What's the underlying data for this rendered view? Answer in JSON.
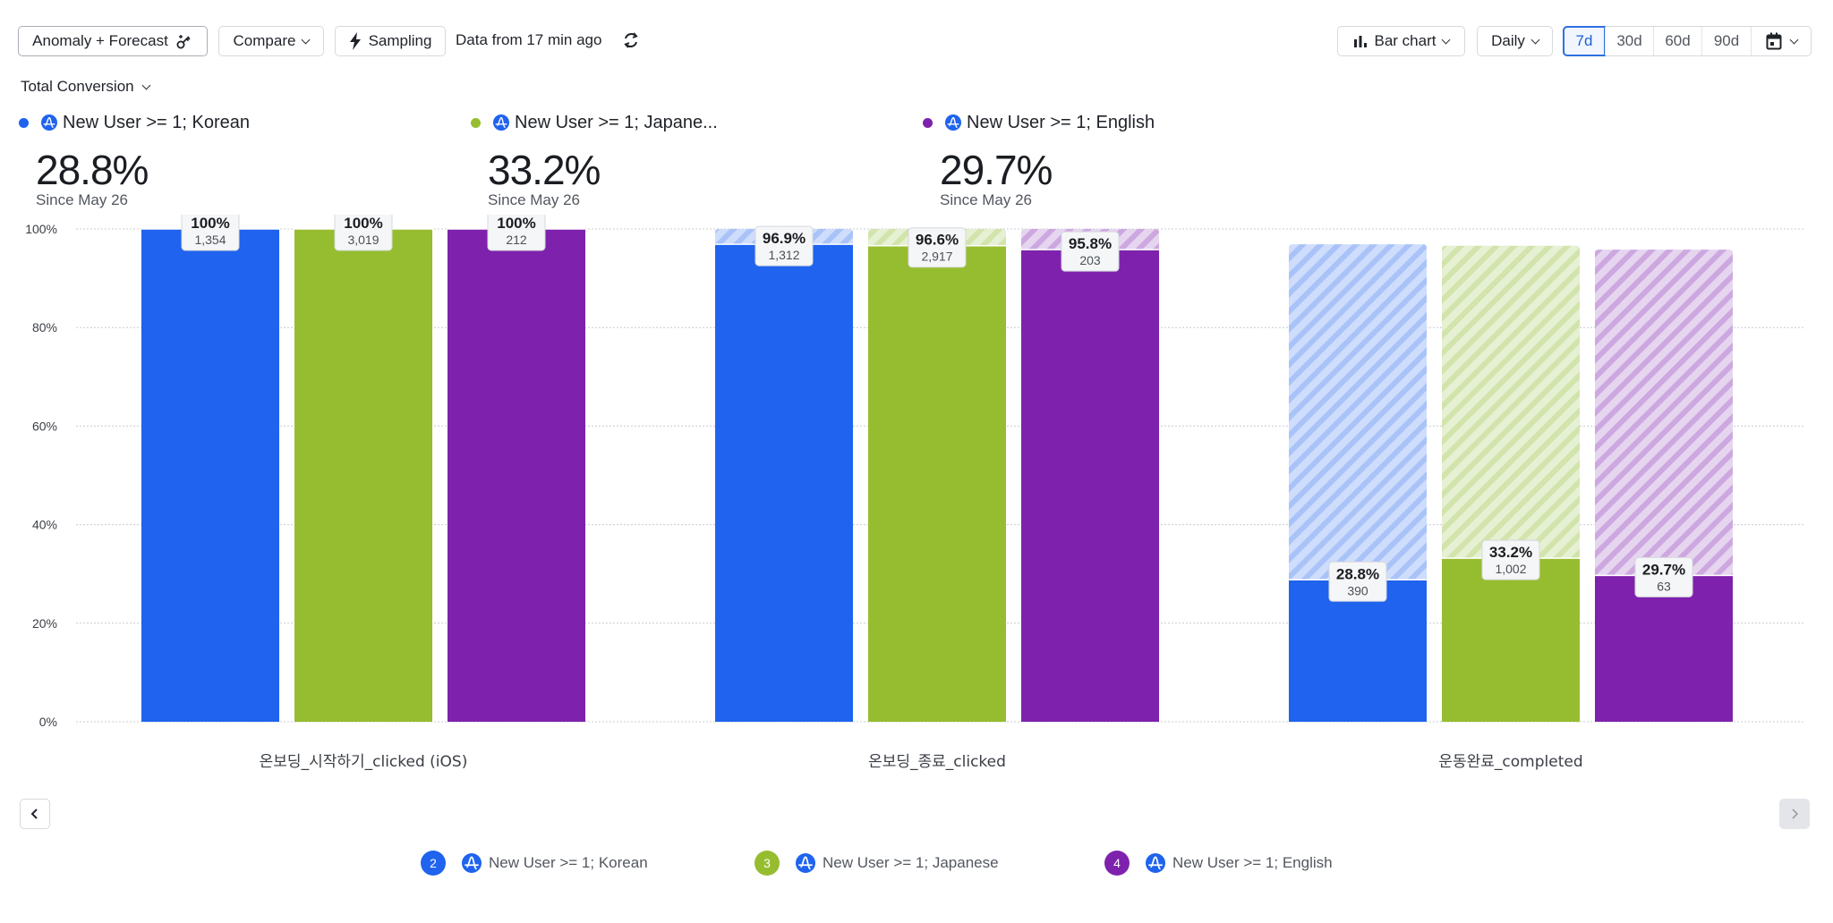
{
  "toolbar": {
    "anomaly_label": "Anomaly + Forecast",
    "compare_label": "Compare",
    "sampling_label": "Sampling",
    "data_freshness": "Data from 17 min ago",
    "chart_type_label": "Bar chart",
    "interval_label": "Daily",
    "ranges": [
      "7d",
      "30d",
      "60d",
      "90d"
    ],
    "active_range": "7d"
  },
  "metric_selector": {
    "label": "Total Conversion"
  },
  "summaries": [
    {
      "label": "New User >= 1; Korean",
      "value": "28.8%",
      "since": "Since May 26",
      "color": "#1f63ee"
    },
    {
      "label": "New User >= 1; Japane...",
      "value": "33.2%",
      "since": "Since May 26",
      "color": "#96bd2f"
    },
    {
      "label": "New User >= 1; English",
      "value": "29.7%",
      "since": "Since May 26",
      "color": "#7e22ad"
    }
  ],
  "legend": [
    {
      "index": "2",
      "label": "New User >= 1; Korean",
      "color": "#1f63ee"
    },
    {
      "index": "3",
      "label": "New User >= 1; Japanese",
      "color": "#96bd2f"
    },
    {
      "index": "4",
      "label": "New User >= 1; English",
      "color": "#7e22ad"
    }
  ],
  "chart_data": {
    "type": "bar",
    "title": "Total Conversion",
    "xlabel": "",
    "ylabel": "",
    "ylim": [
      0,
      100
    ],
    "yticks": [
      "0%",
      "20%",
      "40%",
      "60%",
      "80%",
      "100%"
    ],
    "ytick_values": [
      0,
      20,
      40,
      60,
      80,
      100
    ],
    "grid": true,
    "legend_position": "bottom",
    "categories": [
      "온보딩_시작하기_clicked (iOS)",
      "온보딩_종료_clicked",
      "운동완료_completed"
    ],
    "series": [
      {
        "name": "New User >= 1; Korean",
        "color": "#1f63ee",
        "light": "#cfddfc",
        "stripe": "#a9c3f8",
        "values": [
          100,
          96.9,
          28.8
        ],
        "counts": [
          "1,354",
          "1,312",
          "390"
        ],
        "labels": [
          "100%",
          "96.9%",
          "28.8%"
        ]
      },
      {
        "name": "New User >= 1; Japanese",
        "color": "#96bd2f",
        "light": "#e6f0d3",
        "stripe": "#d2e4ac",
        "values": [
          100,
          96.6,
          33.2
        ],
        "counts": [
          "3,019",
          "2,917",
          "1,002"
        ],
        "labels": [
          "100%",
          "96.6%",
          "33.2%"
        ]
      },
      {
        "name": "New User >= 1; English",
        "color": "#7e22ad",
        "light": "#e6d5ef",
        "stripe": "#cda8e0",
        "values": [
          100,
          95.8,
          29.7
        ],
        "counts": [
          "212",
          "203",
          "63"
        ],
        "labels": [
          "100%",
          "95.8%",
          "29.7%"
        ]
      }
    ]
  }
}
